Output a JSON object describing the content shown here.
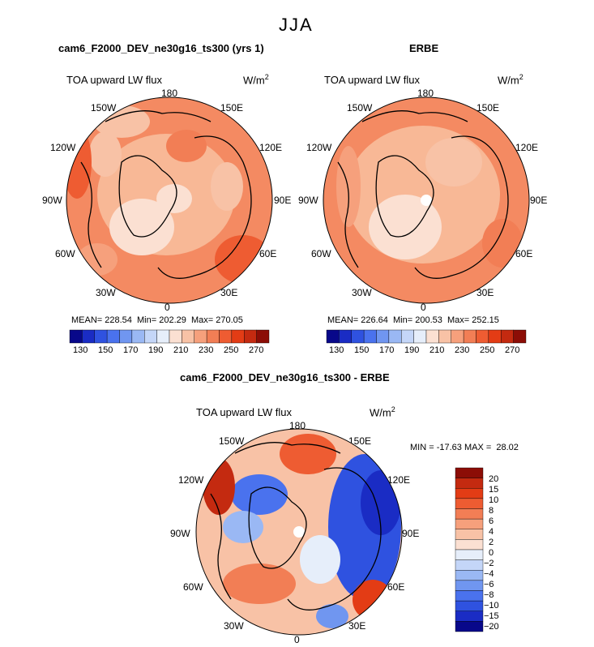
{
  "season": "JJA",
  "variable": "TOA upward LW flux",
  "units_base": "W/m",
  "units_exp": "2",
  "panels": [
    {
      "title": "cam6_F2000_DEV_ne30g16_ts300 (yrs 1)",
      "lon_labels": [
        "180",
        "150E",
        "120E",
        "90E",
        "60E",
        "30E",
        "0",
        "30W",
        "60W",
        "90W",
        "120W",
        "150W"
      ],
      "stats": "MEAN= 228.54  Min= 202.29  Max= 270.05",
      "colorbar_ticks": [
        "130",
        "150",
        "170",
        "190",
        "210",
        "230",
        "250",
        "270"
      ]
    },
    {
      "title": "ERBE",
      "lon_labels": [
        "180",
        "150E",
        "120E",
        "90E",
        "60E",
        "30E",
        "0",
        "30W",
        "60W",
        "90W",
        "120W",
        "150W"
      ],
      "stats": "MEAN= 226.64  Min= 200.53  Max= 252.15",
      "colorbar_ticks": [
        "130",
        "150",
        "170",
        "190",
        "210",
        "230",
        "250",
        "270"
      ]
    },
    {
      "title": "cam6_F2000_DEV_ne30g16_ts300 - ERBE",
      "lon_labels": [
        "180",
        "150E",
        "120E",
        "90E",
        "60E",
        "30E",
        "0",
        "30W",
        "60W",
        "90W",
        "120W",
        "150W"
      ],
      "stats": "MIN = -17.63 MAX =  28.02",
      "colorbar_ticks": [
        "20",
        "15",
        "10",
        "8",
        "6",
        "4",
        "2",
        "0",
        "−2",
        "−4",
        "−6",
        "−8",
        "−10",
        "−15",
        "−20"
      ]
    }
  ],
  "colors": {
    "abs_scale": [
      "#08088a",
      "#1a2cc4",
      "#2f52e0",
      "#4a72ee",
      "#7096f0",
      "#9ab8f4",
      "#c4d6f8",
      "#e6eefa",
      "#fbe0d2",
      "#f8c2a6",
      "#f6a07c",
      "#f27e55",
      "#ee5c32",
      "#e33c15",
      "#c42a10",
      "#8c0d06"
    ],
    "diff_scale": [
      "#8c0d06",
      "#c42a10",
      "#e33c15",
      "#ee5c32",
      "#f27e55",
      "#f6a07c",
      "#f8c2a6",
      "#fbe0d2",
      "#e6eefa",
      "#c4d6f8",
      "#9ab8f4",
      "#7096f0",
      "#4a72ee",
      "#2f52e0",
      "#1a2cc4",
      "#08088a"
    ]
  }
}
